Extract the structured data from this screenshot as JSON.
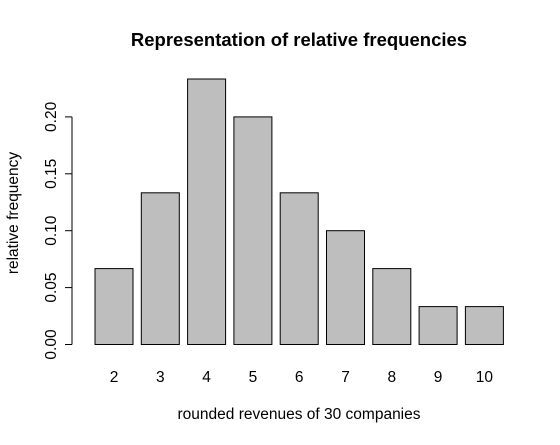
{
  "chart_data": {
    "type": "bar",
    "title": "Representation of relative frequencies",
    "xlabel": "rounded revenues of 30 companies",
    "ylabel": "relative frequency",
    "categories": [
      "2",
      "3",
      "4",
      "5",
      "6",
      "7",
      "8",
      "9",
      "10"
    ],
    "values": [
      0.0667,
      0.1333,
      0.2333,
      0.2,
      0.1333,
      0.1,
      0.0667,
      0.0333,
      0.0333
    ],
    "ylim": [
      0,
      0.2333
    ],
    "y_ticks": [
      "0.00",
      "0.05",
      "0.10",
      "0.15",
      "0.20"
    ],
    "grid": false,
    "legend": "none",
    "colors": {
      "bar_fill": "#bebebe",
      "bar_stroke": "#000000",
      "axis": "#000000"
    }
  }
}
